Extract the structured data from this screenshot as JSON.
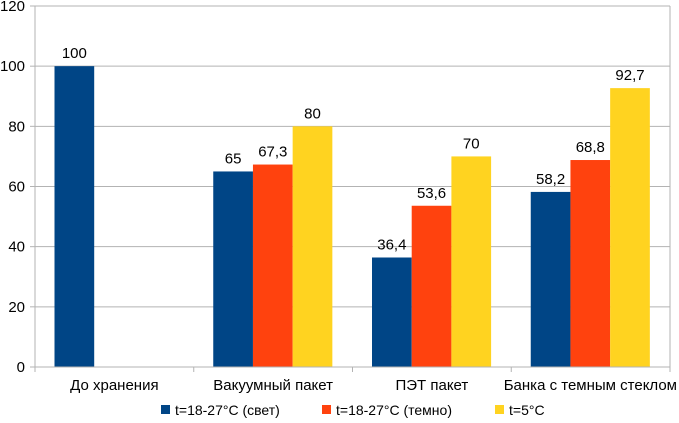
{
  "chart_data": {
    "type": "bar",
    "title": "",
    "xlabel": "",
    "ylabel": "",
    "ylim": [
      0,
      120
    ],
    "yticks": [
      0,
      20,
      40,
      60,
      80,
      100,
      120
    ],
    "grid": true,
    "legend_position": "bottom",
    "categories": [
      "До хранения",
      "Вакуумный пакет",
      "ПЭТ пакет",
      "Банка с темным стеклом"
    ],
    "series": [
      {
        "name": "t=18-27°C (свет)",
        "color": "#004586",
        "values": [
          100,
          65,
          36.4,
          58.2
        ],
        "labels": [
          "100",
          "65",
          "36,4",
          "58,2"
        ]
      },
      {
        "name": "t=18-27°C (темно)",
        "color": "#ff420e",
        "values": [
          null,
          67.3,
          53.6,
          68.8
        ],
        "labels": [
          "",
          "67,3",
          "53,6",
          "68,8"
        ]
      },
      {
        "name": "t=5°C",
        "color": "#ffd320",
        "values": [
          null,
          80,
          70,
          92.7
        ],
        "labels": [
          "",
          "80",
          "70",
          "92,7"
        ]
      }
    ]
  }
}
